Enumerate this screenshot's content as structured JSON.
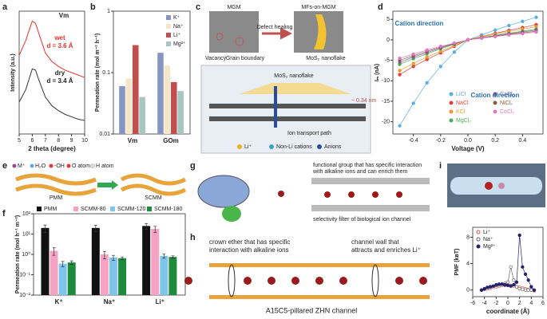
{
  "chart_data": [
    {
      "type": "line",
      "letter": "a",
      "xlabel": "2 theta (degree)",
      "ylabel": "Intensity (a.u.)",
      "annotations": [
        "Vm",
        "wet",
        "d = 3.6 Å",
        "dry",
        "d = 3.4 Å"
      ],
      "x": [
        5,
        5.5,
        6,
        6.25,
        6.5,
        7,
        7.5,
        8,
        8.5,
        9,
        9.5,
        10
      ],
      "xlim": [
        5,
        10
      ],
      "xticks": [
        5,
        6,
        7,
        8,
        9,
        10
      ],
      "ylim": [
        0,
        10
      ],
      "series": [
        {
          "name": "wet",
          "color": "#e8332a",
          "values": [
            6.4,
            7.6,
            9.2,
            9.0,
            8.2,
            6.6,
            5.9,
            5.5,
            5.2,
            5.0,
            4.8,
            4.6
          ]
        },
        {
          "name": "dry",
          "color": "#333333",
          "values": [
            2.6,
            3.6,
            5.3,
            5.2,
            4.4,
            3.0,
            2.3,
            1.9,
            1.6,
            1.4,
            1.2,
            1.1
          ]
        }
      ]
    },
    {
      "type": "bar",
      "letter": "b",
      "ylabel": "Permeation rate (mol m⁻² h⁻¹)",
      "ylog": true,
      "categories": [
        "Vm",
        "GOm"
      ],
      "ylim": [
        0.01,
        1
      ],
      "yticks": [
        0.01,
        0.1,
        1
      ],
      "legend": "upper right",
      "series": [
        {
          "name": "K⁺",
          "color": "#8795c4",
          "values": [
            0.06,
            0.21
          ]
        },
        {
          "name": "Na⁺",
          "color": "#f4e6c7",
          "values": [
            0.08,
            0.13
          ]
        },
        {
          "name": "Li⁺",
          "color": "#c0504d",
          "values": [
            0.28,
            0.07
          ]
        },
        {
          "name": "Mg²⁺",
          "color": "#a8c6c1",
          "values": [
            0.04,
            0.05
          ]
        }
      ]
    },
    {
      "type": "line",
      "letter": "d",
      "markers": true,
      "xlabel": "Voltage (V)",
      "ylabel": "Iₘ (nA)",
      "annotations": [
        "Cation direction",
        "Cation direction"
      ],
      "legend": "lower right",
      "x": [
        -0.5,
        -0.4,
        -0.3,
        -0.2,
        -0.1,
        0,
        0.1,
        0.2,
        0.3,
        0.4,
        0.5
      ],
      "xlim": [
        -0.55,
        0.55
      ],
      "xticks": [
        -0.4,
        -0.2,
        {
          "value": 0,
          "label": "0.0"
        },
        0.2,
        0.4
      ],
      "ylim": [
        -23,
        7
      ],
      "yticks": [
        -20,
        -15,
        -10,
        -5,
        0,
        5
      ],
      "series": [
        {
          "name": "LiCl",
          "color": "#5aaee0",
          "values": [
            -21,
            -15.5,
            -10.5,
            -6.5,
            -3,
            0,
            1.2,
            2.4,
            3.5,
            4.5,
            5.5
          ]
        },
        {
          "name": "NaCl",
          "color": "#e0403a",
          "values": [
            -8.5,
            -6.5,
            -4.8,
            -3.2,
            -1.6,
            0,
            0.8,
            1.6,
            2.3,
            3.0,
            3.7
          ]
        },
        {
          "name": "KCl",
          "color": "#f29a2e",
          "values": [
            -7.5,
            -5.8,
            -4.2,
            -2.8,
            -1.4,
            0,
            0.7,
            1.4,
            2.0,
            2.6,
            3.2
          ]
        },
        {
          "name": "MgCl₂",
          "color": "#4caf50",
          "values": [
            -6,
            -4.6,
            -3.4,
            -2.2,
            -1.1,
            0,
            0.5,
            1.1,
            1.6,
            2.1,
            2.6
          ]
        },
        {
          "name": "CaCl₂",
          "color": "#7b5ea7",
          "values": [
            -5.5,
            -4.2,
            -3.1,
            -2.0,
            -1.0,
            0,
            0.5,
            1.0,
            1.5,
            1.9,
            2.4
          ]
        },
        {
          "name": "NiCl₂",
          "color": "#8c5a3c",
          "values": [
            -5,
            -3.9,
            -2.8,
            -1.8,
            -0.9,
            0,
            0.4,
            0.9,
            1.3,
            1.7,
            2.1
          ]
        },
        {
          "name": "CoCl₂",
          "color": "#e377c2",
          "values": [
            -4.5,
            -3.5,
            -2.5,
            -1.6,
            -0.8,
            0,
            0.4,
            0.8,
            1.2,
            1.5,
            1.9
          ]
        }
      ]
    },
    {
      "type": "bar",
      "letter": "f",
      "ylabel": "Permeation rate (mol h⁻¹ m⁻²)",
      "ylog": true,
      "categories": [
        "K⁺",
        "Na⁺",
        "Li⁺"
      ],
      "ylim": [
        0.01,
        100
      ],
      "legend": "upper center",
      "yticks": [
        {
          "value": 0.01,
          "label": "10⁻²"
        },
        {
          "value": 0.1,
          "label": "10⁻¹"
        },
        {
          "value": 1,
          "label": "10⁰"
        },
        {
          "value": 10,
          "label": "10¹"
        },
        {
          "value": 100,
          "label": "10²"
        }
      ],
      "series": [
        {
          "name": "PMM",
          "color": "#111111",
          "values": [
            20,
            20,
            25
          ],
          "errors": [
            8,
            7,
            8
          ]
        },
        {
          "name": "SCMM-80",
          "color": "#f4a3c4",
          "values": [
            1.5,
            1.0,
            18
          ],
          "errors": [
            0.6,
            0.4,
            6
          ]
        },
        {
          "name": "SCMM-120",
          "color": "#7fc4ea",
          "values": [
            0.35,
            0.7,
            0.85
          ],
          "errors": [
            0.1,
            0.2,
            0.2
          ]
        },
        {
          "name": "SCMM-180",
          "color": "#1e8a3c",
          "values": [
            0.4,
            0.65,
            0.75
          ],
          "errors": [
            0.08,
            0.1,
            0.1
          ]
        }
      ]
    },
    {
      "type": "line",
      "markers": true,
      "xlabel": "coordinate (Å)",
      "ylabel": "PMF (kʙT)",
      "legend": "upper left",
      "x": [
        -4.5,
        -4,
        -3.5,
        -3,
        -2.5,
        -2,
        -1.5,
        -1,
        -0.5,
        0,
        0.5,
        1,
        1.5,
        2,
        2.5,
        3,
        3.5,
        4,
        4.5
      ],
      "xlim": [
        -6,
        6
      ],
      "xticks": [
        -6,
        -4,
        -2,
        0,
        2,
        4,
        6
      ],
      "ylim": [
        -1,
        9.5
      ],
      "yticks": [
        0,
        4,
        8
      ],
      "series": [
        {
          "name": "Li⁺",
          "color": "#d9534f",
          "marker": "open",
          "values": [
            0,
            0.1,
            0.2,
            0.3,
            0.4,
            0.5,
            0.6,
            0.7,
            0.7,
            0.75,
            0.7,
            0.6,
            0.5,
            0.4,
            0.3,
            0.2,
            0.1,
            0,
            -0.1
          ]
        },
        {
          "name": "Na⁺",
          "color": "#666666",
          "marker": "open",
          "values": [
            0,
            0.2,
            0.4,
            0.5,
            0.6,
            0.7,
            0.8,
            0.9,
            1.0,
            1.2,
            3.5,
            1.5,
            0.5,
            0.2,
            0.1,
            0,
            0,
            0,
            0
          ]
        },
        {
          "name": "Mg²⁺",
          "color": "#22226e",
          "marker": "filled",
          "values": [
            0,
            0.2,
            0.4,
            0.5,
            0.6,
            0.8,
            0.9,
            0.9,
            0.8,
            0.7,
            0.6,
            0.8,
            1.2,
            8.3,
            3.5,
            2.4,
            1.5,
            0.5,
            0
          ]
        }
      ]
    }
  ],
  "diagrams": {
    "c": {
      "letter": "c",
      "labels": [
        "MGM",
        "Defect healing",
        "MFs-on-MGM",
        "Vacancy",
        "Grain boundary",
        "MoS₂ nanoflake",
        "MoS₂ nanoflake",
        "~ 0.34 nm",
        "Ion transport path"
      ],
      "legend": [
        "Li⁺",
        "Non-Li cations",
        "Anions"
      ]
    },
    "e": {
      "letter": "e",
      "legend": [
        "M⁺",
        "H₂O",
        "-OH",
        "O atom",
        "H atom"
      ],
      "labels": [
        "PMM",
        "SCMM"
      ]
    },
    "g": {
      "letter": "g",
      "labels": [
        "functional group that has specific interaction",
        "with alkaline ions and can enrich them",
        "selectivity filter of biological ion channel"
      ]
    },
    "h": {
      "letter": "h",
      "labels": [
        "crown ether that has specific",
        "interaction with alkaline ions",
        "channel wall that",
        "attracts and enriches Li⁺",
        "A15C5-pillared ZHN channel"
      ]
    },
    "i": {
      "letter": "i"
    }
  }
}
